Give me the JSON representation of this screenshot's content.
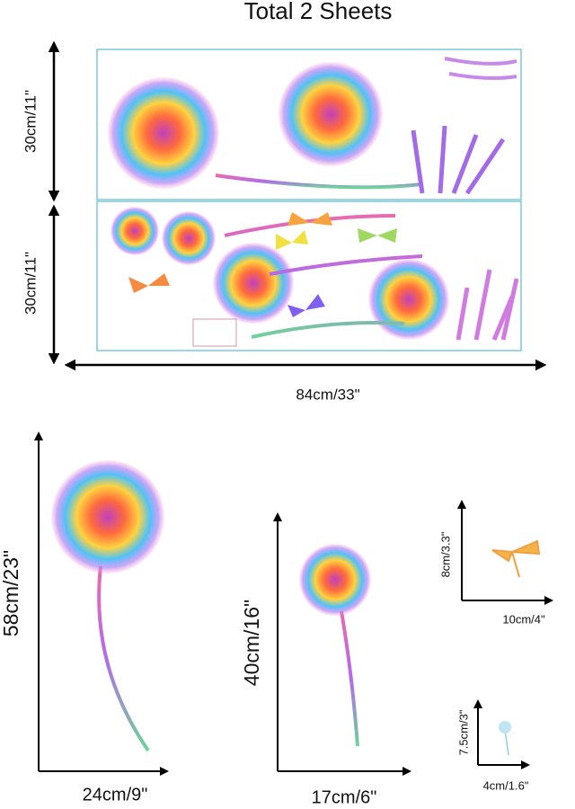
{
  "title": "Total 2 Sheets",
  "sheets": {
    "heights": [
      "30cm/11\"",
      "30cm/11\""
    ],
    "width": "84cm/33\""
  },
  "items": [
    {
      "height": "58cm/23\"",
      "width": "24cm/9\""
    },
    {
      "height": "40cm/16\"",
      "width": "17cm/6\""
    },
    {
      "height": "8cm/3.3\"",
      "width": "10cm/4\""
    },
    {
      "height": "7.5cm/3\"",
      "width": "4cm/1.6\""
    }
  ]
}
